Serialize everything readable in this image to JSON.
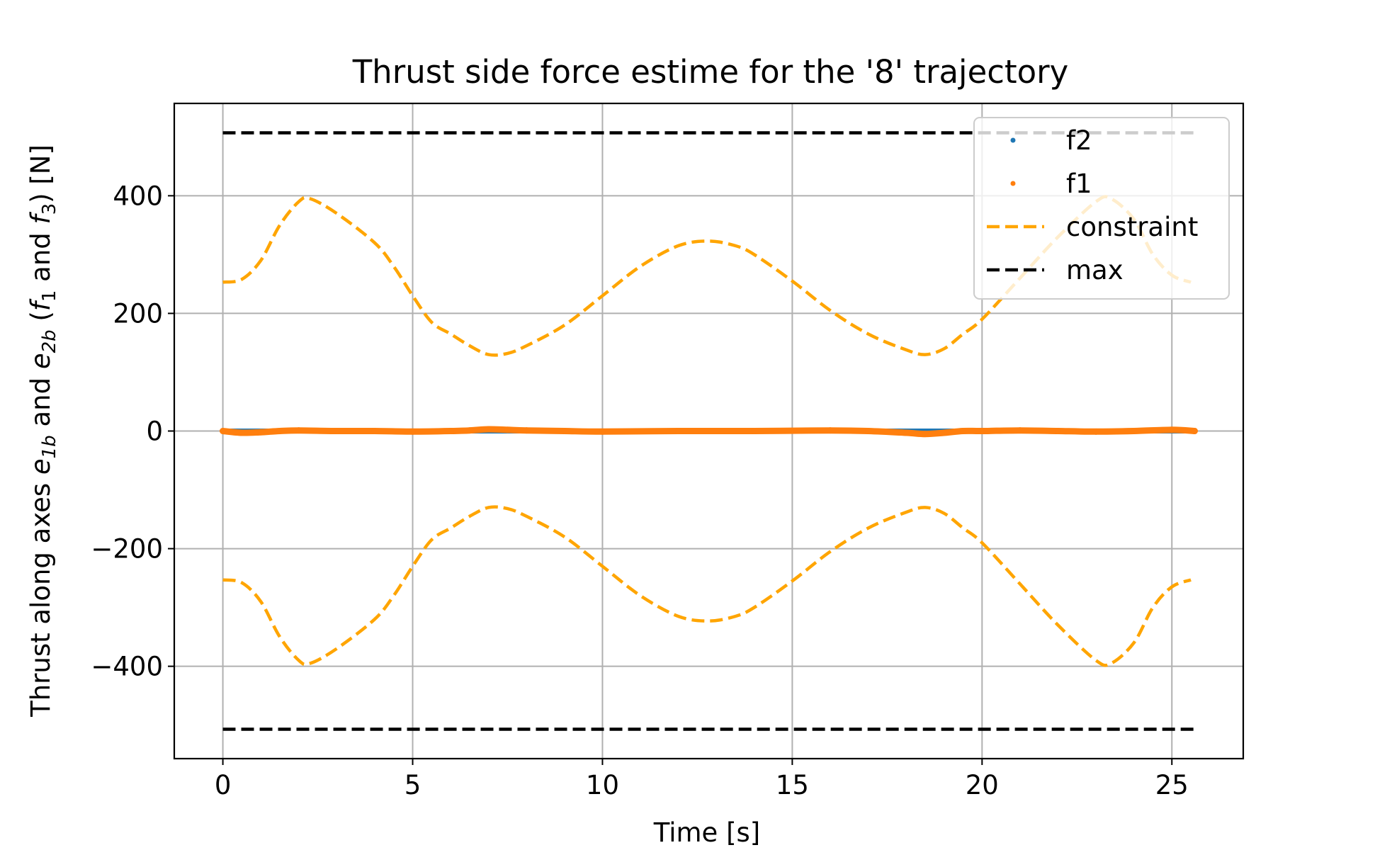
{
  "chart_data": {
    "type": "line",
    "title": "Thrust side force estime for the '8' trajectory",
    "xlabel": "Time [s]",
    "ylabel": {
      "prefix": "Thrust along axes ",
      "e1": "e",
      "e1_sub": "1b",
      "mid": " and ",
      "e2": "e",
      "e2_sub": "2b",
      "open": " (",
      "f1": "f",
      "f1_sub": "1",
      "and": " and ",
      "f3": "f",
      "f3_sub": "3",
      "suffix": ") [N]"
    },
    "xlim": [
      -1.28,
      26.88
    ],
    "ylim": [
      -557,
      557
    ],
    "xticks": [
      0,
      5,
      10,
      15,
      20,
      25
    ],
    "yticks": [
      -400,
      -200,
      0,
      200,
      400
    ],
    "ytick_labels": [
      "−400",
      "−200",
      "0",
      "200",
      "400"
    ],
    "grid": true,
    "legend_position": "upper right",
    "series": [
      {
        "name": "f2",
        "style": "dots",
        "color": "#1f77b4",
        "x": [
          0,
          2,
          4,
          6,
          8,
          10,
          12,
          14,
          16,
          18,
          20,
          22,
          24,
          25.6
        ],
        "y": [
          0,
          0,
          0,
          0,
          0,
          0,
          0,
          0,
          0,
          0,
          0,
          0,
          0,
          0
        ]
      },
      {
        "name": "f1",
        "style": "dots",
        "color": "#ff7f0e",
        "x": [
          0,
          0.5,
          1,
          1.5,
          2,
          3,
          4,
          5,
          6,
          6.5,
          7,
          7.5,
          8,
          9,
          10,
          12,
          14,
          16,
          17,
          18,
          18.5,
          19,
          19.5,
          20,
          21,
          22,
          23,
          24,
          25,
          25.6
        ],
        "y": [
          0,
          -3,
          -2,
          0,
          1,
          0,
          0,
          -1,
          0,
          1,
          3,
          2,
          1,
          0,
          -1,
          0,
          0,
          1,
          0,
          -3,
          -5,
          -3,
          0,
          0,
          1,
          0,
          -1,
          0,
          2,
          0
        ]
      },
      {
        "name": "constraint",
        "style": "dashed",
        "color": "#ffa500",
        "x": [
          0,
          0.5,
          1,
          1.5,
          2,
          2.3,
          3,
          4,
          4.5,
          5,
          5.5,
          6,
          6.5,
          7,
          7.5,
          8,
          9,
          10,
          11,
          12,
          12.8,
          13.5,
          14,
          15,
          16,
          17,
          18,
          18.5,
          19,
          19.5,
          20,
          21,
          22,
          23,
          23.4,
          24,
          24.5,
          25,
          25.5
        ],
        "y": [
          253,
          258,
          290,
          350,
          390,
          395,
          370,
          320,
          280,
          230,
          185,
          165,
          145,
          130,
          132,
          145,
          180,
          230,
          280,
          315,
          323,
          315,
          300,
          255,
          205,
          165,
          138,
          130,
          140,
          165,
          190,
          260,
          330,
          390,
          395,
          360,
          300,
          265,
          253
        ],
        "mirror_negative": true
      },
      {
        "name": "max",
        "style": "dashed",
        "color": "#000000",
        "x": [
          0,
          25.6
        ],
        "y": [
          507,
          507
        ],
        "mirror_negative": true
      }
    ]
  }
}
